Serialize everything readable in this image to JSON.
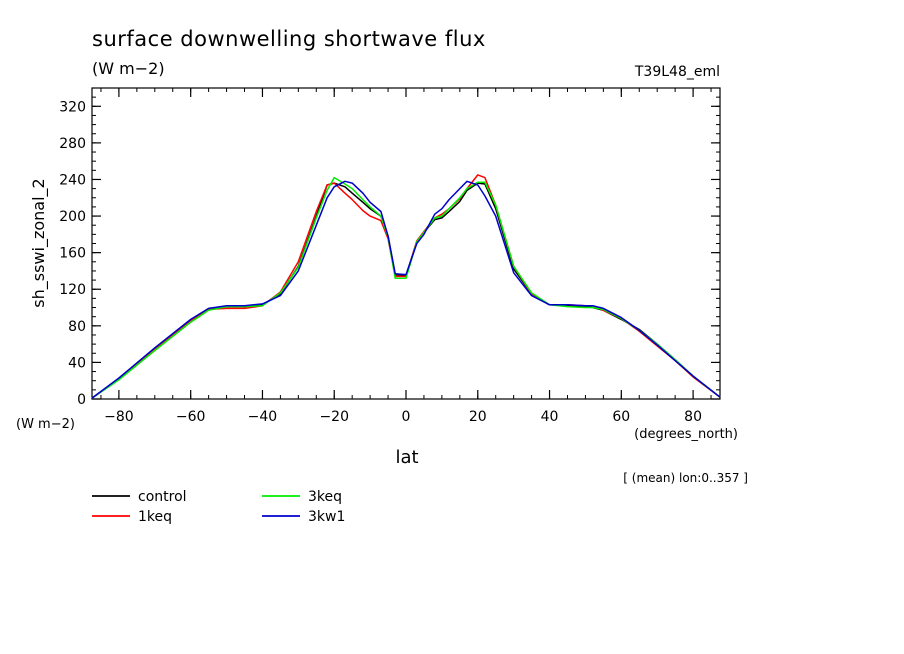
{
  "chart_data": {
    "type": "line",
    "title": "surface downwelling shortwave flux",
    "subtitle": "(W m−2)",
    "experiment": "T39L48_eml",
    "ylabel": "sh_sswi_zonal_2",
    "yunits": "(W m−2)",
    "xlabel": "lat",
    "xunits": "(degrees_north)",
    "note": "[ (mean) lon:0..357 ]",
    "xlim": [
      -87.5,
      87.5
    ],
    "ylim": [
      0,
      340
    ],
    "xticks": [
      -80,
      -60,
      -40,
      -20,
      0,
      20,
      40,
      60,
      80
    ],
    "xtick_labels": [
      "−80",
      "−60",
      "−40",
      "−20",
      "0",
      "20",
      "40",
      "60",
      "80"
    ],
    "yticks": [
      0,
      40,
      80,
      120,
      160,
      200,
      240,
      280,
      320
    ],
    "ytick_labels": [
      "0",
      "40",
      "80",
      "120",
      "160",
      "200",
      "240",
      "280",
      "320"
    ],
    "grid": false,
    "legend_position": "bottom-left",
    "series": [
      {
        "name": "control",
        "color": "#000000",
        "x": [
          -87.5,
          -80,
          -70,
          -60,
          -55,
          -50,
          -45,
          -40,
          -35,
          -30,
          -25,
          -22,
          -20,
          -17,
          -15,
          -12,
          -10,
          -7,
          -5,
          -3,
          0,
          3,
          5,
          8,
          10,
          12,
          15,
          17,
          20,
          22,
          25,
          30,
          35,
          40,
          45,
          50,
          52,
          55,
          60,
          65,
          70,
          75,
          80,
          87.5
        ],
        "y": [
          1,
          22,
          55,
          86,
          98,
          101,
          101,
          103,
          115,
          145,
          200,
          234,
          236,
          232,
          225,
          215,
          208,
          200,
          178,
          136,
          135,
          172,
          182,
          196,
          198,
          205,
          216,
          228,
          236,
          235,
          208,
          142,
          115,
          103,
          102,
          101,
          100,
          97,
          87,
          76,
          60,
          43,
          25,
          2
        ]
      },
      {
        "name": "1keq",
        "color": "#ff0000",
        "x": [
          -87.5,
          -80,
          -70,
          -60,
          -55,
          -50,
          -45,
          -40,
          -35,
          -30,
          -25,
          -22,
          -20,
          -17,
          -15,
          -12,
          -10,
          -7,
          -5,
          -3,
          0,
          3,
          5,
          8,
          10,
          12,
          15,
          17,
          20,
          22,
          25,
          30,
          35,
          40,
          45,
          50,
          52,
          55,
          60,
          65,
          70,
          75,
          80,
          87.5
        ],
        "y": [
          1,
          22,
          55,
          86,
          98,
          99,
          99,
          102,
          117,
          150,
          205,
          234,
          236,
          225,
          218,
          206,
          200,
          195,
          175,
          134,
          134,
          173,
          183,
          198,
          202,
          208,
          219,
          230,
          245,
          242,
          212,
          145,
          115,
          103,
          103,
          102,
          102,
          97,
          88,
          74,
          58,
          42,
          24,
          2
        ]
      },
      {
        "name": "3keq",
        "color": "#00ee00",
        "x": [
          -87.5,
          -80,
          -70,
          -60,
          -55,
          -50,
          -45,
          -40,
          -35,
          -30,
          -25,
          -22,
          -20,
          -17,
          -15,
          -12,
          -10,
          -7,
          -5,
          -3,
          0,
          3,
          5,
          8,
          10,
          12,
          15,
          17,
          20,
          22,
          25,
          30,
          35,
          40,
          45,
          50,
          52,
          55,
          60,
          65,
          70,
          75,
          80,
          87.5
        ],
        "y": [
          1,
          21,
          53,
          84,
          97,
          101,
          101,
          102,
          116,
          144,
          198,
          228,
          242,
          235,
          230,
          218,
          210,
          200,
          177,
          132,
          132,
          172,
          182,
          198,
          200,
          208,
          220,
          230,
          237,
          237,
          212,
          145,
          116,
          103,
          101,
          100,
          100,
          98,
          88,
          75,
          60,
          43,
          25,
          2
        ]
      },
      {
        "name": "3kw1",
        "color": "#0000cc",
        "x": [
          -87.5,
          -80,
          -70,
          -60,
          -55,
          -50,
          -45,
          -40,
          -35,
          -30,
          -25,
          -22,
          -20,
          -17,
          -15,
          -12,
          -10,
          -7,
          -5,
          -3,
          0,
          3,
          5,
          8,
          10,
          12,
          15,
          17,
          20,
          22,
          25,
          30,
          35,
          40,
          45,
          50,
          52,
          55,
          60,
          65,
          70,
          75,
          80,
          87.5
        ],
        "y": [
          1,
          23,
          56,
          87,
          99,
          102,
          102,
          104,
          113,
          140,
          190,
          220,
          232,
          238,
          236,
          225,
          215,
          205,
          178,
          137,
          136,
          170,
          180,
          202,
          208,
          218,
          230,
          238,
          234,
          222,
          200,
          138,
          113,
          103,
          103,
          102,
          102,
          99,
          89,
          75,
          59,
          42,
          25,
          2
        ]
      }
    ]
  }
}
